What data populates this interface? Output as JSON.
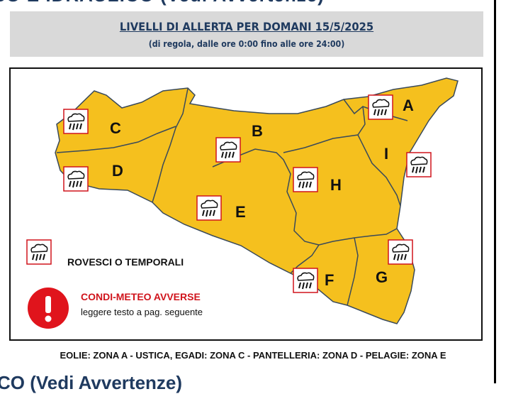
{
  "page": {
    "top_heading_partial": "SO E IDRAULICO (Vedi Avvertenze)",
    "bottom_heading_partial": "CO (Vedi Avvertenze)"
  },
  "header": {
    "title": "LIVELLI DI ALLERTA PER DOMANI 15/5/2025",
    "subtitle": "(di regola, dalle ore 0:00 fino alle ore 24:00)"
  },
  "map": {
    "fill_color": "#f5c01e",
    "outline_color": "#3a4a5a",
    "zones": [
      {
        "label": "A",
        "alert": "rovesci o temporali"
      },
      {
        "label": "B",
        "alert": "rovesci o temporali"
      },
      {
        "label": "C",
        "alert": "rovesci o temporali"
      },
      {
        "label": "D",
        "alert": "rovesci o temporali"
      },
      {
        "label": "E",
        "alert": "rovesci o temporali"
      },
      {
        "label": "F",
        "alert": "rovesci o temporali"
      },
      {
        "label": "G",
        "alert": "rovesci o temporali"
      },
      {
        "label": "H",
        "alert": "rovesci o temporali"
      },
      {
        "label": "I",
        "alert": "rovesci o temporali"
      }
    ],
    "icon": "thunderstorm-icon"
  },
  "legend": {
    "storm_label": "ROVESCI O TEMPORALI",
    "warning_label": "CONDI-METEO AVVERSE",
    "warning_note": "leggere testo a pag. seguente",
    "warning_color": "#e0141c"
  },
  "footer": "EOLIE: ZONA A - USTICA, EGADI: ZONA C - PANTELLERIA: ZONA D - PELAGIE: ZONA E"
}
